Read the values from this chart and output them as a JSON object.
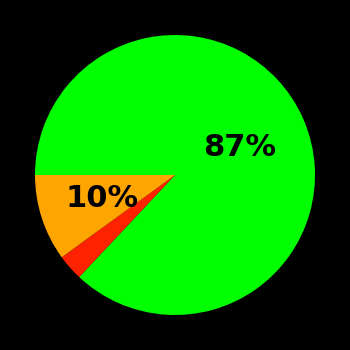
{
  "slices": [
    87,
    3,
    10
  ],
  "colors": [
    "#00ff00",
    "#ff2200",
    "#ffa500"
  ],
  "labels": [
    "87%",
    "",
    "10%"
  ],
  "background_color": "#000000",
  "startangle": 180,
  "label_fontsize": 22,
  "label_color": "#000000",
  "label_fontweight": "bold",
  "label_radii": [
    0.5,
    0.0,
    0.55
  ]
}
